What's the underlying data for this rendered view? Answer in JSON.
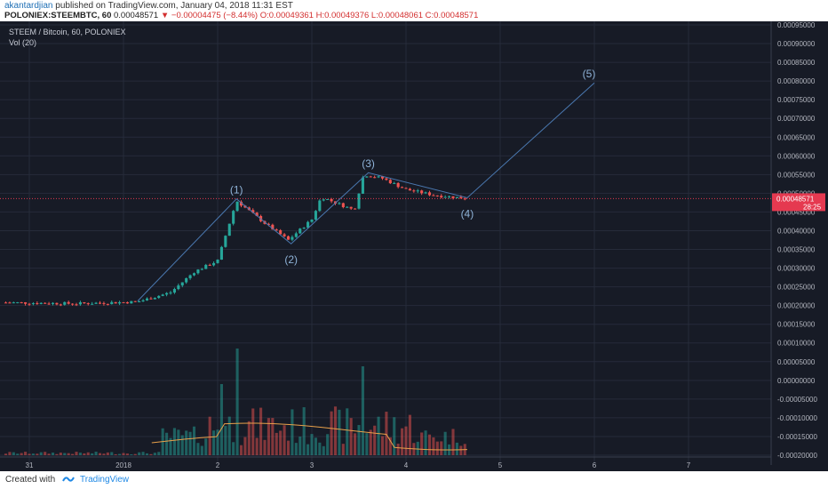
{
  "header": {
    "author": "akantardjian",
    "published_text": "published on TradingView.com, January 04, 2018 11:31 EST",
    "symbol": "POLONIEX:STEEMBTC, 60",
    "last": "0.00048571",
    "arrow": "▼",
    "change": "−0.00004475 (−8.44%)",
    "ohlc": "O:0.00049361 H:0.00049376 L:0.00048061 C:0.00048571"
  },
  "legend": {
    "title": "STEEM / Bitcoin, 60, POLONIEX",
    "volume": "Vol (20)"
  },
  "footer": {
    "created_with": "Created with",
    "brand": "TradingView"
  },
  "colors": {
    "background": "#171b26",
    "grid": "#262b3a",
    "up": "#26a69a",
    "down": "#ef5350",
    "wave_line": "#4a78b0",
    "wave_label": "#8fb3d8",
    "vol_ma": "#e8a04a",
    "axis_text": "#b2b5be",
    "price_badge": "#e53950"
  },
  "chart_data": {
    "type": "candlestick",
    "price_axis_labels": [
      "0.00095000",
      "0.00090000",
      "0.00085000",
      "0.00080000",
      "0.00075000",
      "0.00070000",
      "0.00065000",
      "0.00060000",
      "0.00055000",
      "0.00050000",
      "0.00045000",
      "0.00040000",
      "0.00035000",
      "0.00030000",
      "0.00025000",
      "0.00020000",
      "0.00015000",
      "0.00010000",
      "0.00005000",
      "0.00000000",
      "-0.00005000",
      "-0.00010000",
      "-0.00015000",
      "-0.00020000"
    ],
    "ylim": [
      -0.0002,
      0.00095
    ],
    "x_labels": [
      {
        "label": "31",
        "day": 0
      },
      {
        "label": "2018",
        "day": 1
      },
      {
        "label": "2",
        "day": 2
      },
      {
        "label": "3",
        "day": 3
      },
      {
        "label": "4",
        "day": 4
      },
      {
        "label": "5",
        "day": 5
      },
      {
        "label": "6",
        "day": 6
      },
      {
        "label": "7",
        "day": 7
      }
    ],
    "current_price": "0.00048571",
    "countdown": "28:25",
    "candles_daily_path": [
      {
        "day": -0.25,
        "price": 0.000208
      },
      {
        "day": 0.5,
        "price": 0.000205
      },
      {
        "day": 1.15,
        "price": 0.00021
      },
      {
        "day": 1.5,
        "price": 0.000235
      },
      {
        "day": 1.75,
        "price": 0.00029
      },
      {
        "day": 2.0,
        "price": 0.00032
      },
      {
        "day": 2.2,
        "price": 0.00048
      },
      {
        "day": 2.5,
        "price": 0.00042
      },
      {
        "day": 2.75,
        "price": 0.000375
      },
      {
        "day": 3.0,
        "price": 0.00043
      },
      {
        "day": 3.1,
        "price": 0.00049
      },
      {
        "day": 3.45,
        "price": 0.000455
      },
      {
        "day": 3.55,
        "price": 0.00055
      },
      {
        "day": 3.75,
        "price": 0.00054
      },
      {
        "day": 4.0,
        "price": 0.00051
      },
      {
        "day": 4.3,
        "price": 0.000495
      },
      {
        "day": 4.65,
        "price": 0.000486
      }
    ],
    "volume_ma_levels": [
      0.0,
      0.0008,
      0.0009,
      0.00175,
      0.00185,
      0.0026,
      0.00215,
      0.0014,
      0.00115
    ],
    "waves": [
      {
        "label": "(1)",
        "day": 2.2,
        "price": 0.000485
      },
      {
        "label": "(2)",
        "day": 2.78,
        "price": 0.000365
      },
      {
        "label": "(3)",
        "day": 3.6,
        "price": 0.000555
      },
      {
        "label": "(4)",
        "day": 4.65,
        "price": 0.000488
      },
      {
        "label": "(5)",
        "day": 6.0,
        "price": 0.000795
      }
    ],
    "wave_line_points": [
      {
        "day": 1.15,
        "price": 0.000212
      },
      {
        "day": 2.2,
        "price": 0.000485
      },
      {
        "day": 2.78,
        "price": 0.000365
      },
      {
        "day": 3.6,
        "price": 0.000555
      },
      {
        "day": 4.65,
        "price": 0.000488
      },
      {
        "day": 6.0,
        "price": 0.000795
      }
    ]
  }
}
